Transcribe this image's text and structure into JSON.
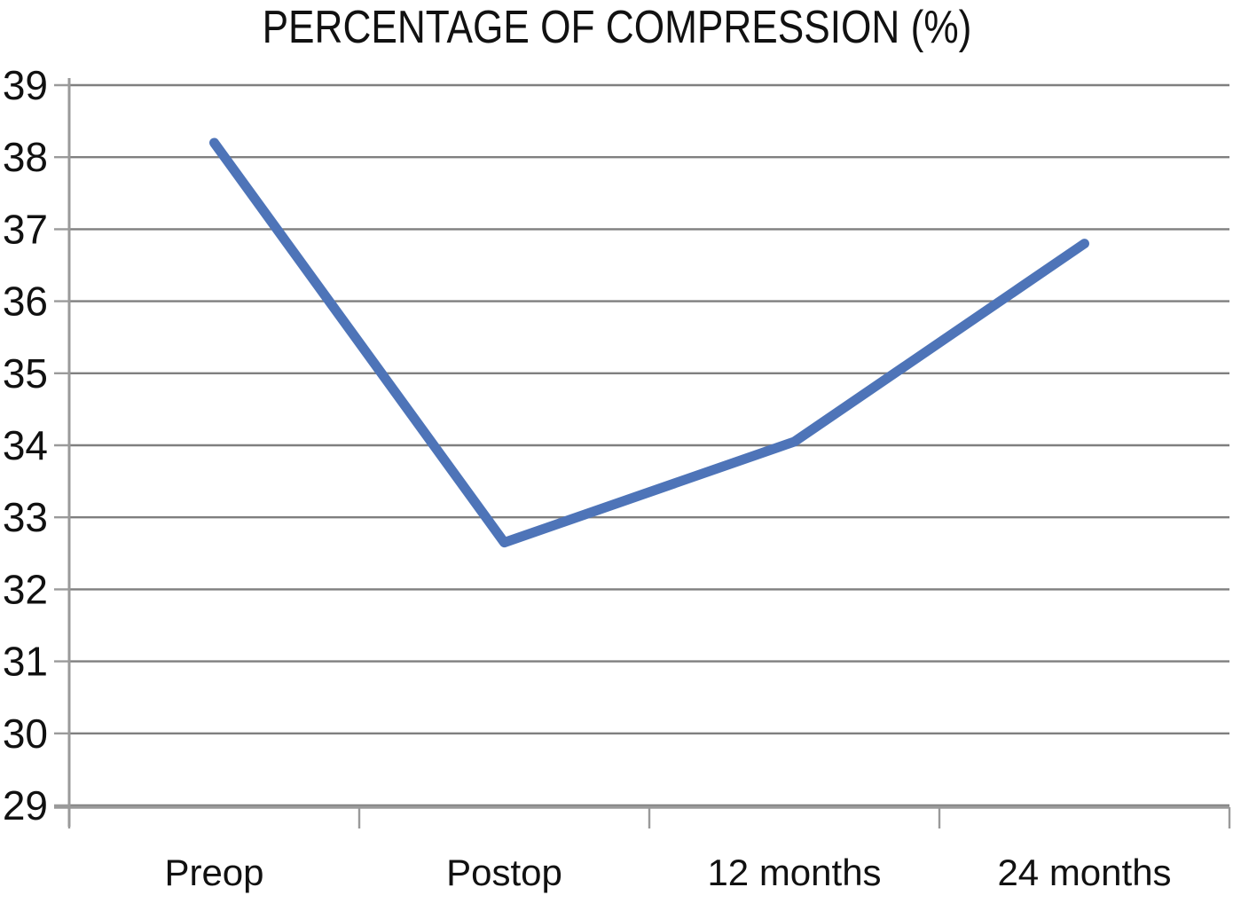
{
  "chart_data": {
    "type": "line",
    "title": "PERCENTAGE OF COMPRESSION (%)",
    "categories": [
      "Preop",
      "Postop",
      "12 months",
      "24 months"
    ],
    "series": [
      {
        "name": "Percentage of compression",
        "values": [
          38.2,
          32.65,
          34.05,
          36.8
        ]
      }
    ],
    "xlabel": "",
    "ylabel": "",
    "ylim": [
      29,
      39
    ],
    "ytick_step": 1,
    "ytick_labels": [
      "29",
      "30",
      "31",
      "32",
      "33",
      "34",
      "35",
      "36",
      "37",
      "38",
      "39"
    ],
    "grid": true,
    "legend": false,
    "colors": {
      "line": "#4e74b8",
      "gridline": "#7f7f7f",
      "axis": "#9a9a9a",
      "text": "#111111",
      "background": "#ffffff"
    }
  }
}
